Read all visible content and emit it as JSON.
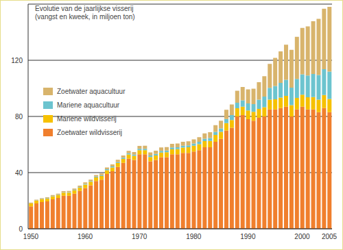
{
  "chart_data": {
    "type": "bar",
    "title": "Evolutie van de jaarlijkse visserij (vangst en kweek, in miljoen ton)",
    "stacked": true,
    "grid": true,
    "legend": "left",
    "categories": [
      "1950",
      null,
      null,
      null,
      null,
      null,
      null,
      null,
      null,
      null,
      "1960",
      null,
      null,
      null,
      null,
      null,
      null,
      null,
      null,
      null,
      "1970",
      null,
      null,
      null,
      null,
      null,
      null,
      null,
      null,
      null,
      "1980",
      null,
      null,
      null,
      null,
      null,
      null,
      null,
      null,
      null,
      "1990",
      null,
      null,
      null,
      null,
      null,
      null,
      null,
      null,
      null,
      "2000",
      null,
      null,
      null,
      null,
      "2005"
    ],
    "ylim": [
      0,
      160
    ],
    "yticks": [
      0,
      40,
      80,
      120
    ],
    "series": [
      {
        "name": "Zoetwater aquacultuur",
        "color": "#d8b46c",
        "values": [
          0.5,
          0.5,
          0.6,
          0.6,
          0.7,
          0.7,
          0.8,
          0.8,
          0.9,
          0.9,
          1,
          1,
          1.1,
          1.2,
          1.3,
          1.4,
          1.5,
          1.6,
          1.7,
          1.8,
          2,
          2.1,
          2.2,
          2.3,
          2.4,
          2.5,
          2.6,
          2.7,
          2.8,
          2.9,
          3,
          3.3,
          3.7,
          4.2,
          4.8,
          5.5,
          6.5,
          7.5,
          8.5,
          9.5,
          10,
          11,
          12.5,
          14.5,
          17,
          20,
          22.5,
          25,
          27,
          30,
          33,
          35,
          37.5,
          40,
          43,
          46
        ]
      },
      {
        "name": "Mariene aquacultuur",
        "color": "#6cc4cf",
        "values": [
          0.2,
          0.2,
          0.2,
          0.3,
          0.3,
          0.3,
          0.3,
          0.4,
          0.4,
          0.4,
          0.5,
          0.5,
          0.6,
          0.6,
          0.7,
          0.7,
          0.8,
          0.8,
          0.9,
          0.9,
          1,
          1,
          1.1,
          1.1,
          1.2,
          1.2,
          1.3,
          1.3,
          1.4,
          1.4,
          1.5,
          1.6,
          1.8,
          2,
          2.2,
          2.5,
          3,
          3.5,
          4,
          4.5,
          5,
          5.5,
          6.5,
          7.5,
          8.5,
          9.5,
          10.5,
          11.5,
          12.5,
          13.5,
          14.5,
          15.5,
          16.5,
          17.5,
          18.5,
          19.5
        ]
      },
      {
        "name": "Mariene wildvisserij",
        "color": "#f6c100",
        "values": [
          2,
          2,
          2,
          2,
          2,
          2,
          2.2,
          2.2,
          2.3,
          2.4,
          2.5,
          2.5,
          2.6,
          2.6,
          2.7,
          2.7,
          2.8,
          2.8,
          2.9,
          2.9,
          3,
          3,
          3.1,
          3.2,
          3.3,
          3.5,
          3.6,
          3.7,
          3.8,
          4,
          4.2,
          4.3,
          4.4,
          4.6,
          4.8,
          5,
          5.2,
          5.5,
          5.8,
          6,
          6.3,
          6.3,
          6.4,
          6.6,
          6.9,
          7.2,
          7.4,
          7.6,
          8,
          8.2,
          8.5,
          8.7,
          8.8,
          9,
          9.2,
          9.5
        ]
      },
      {
        "name": "Zoetwater wildvisserij",
        "color": "#f07f2d",
        "values": [
          16,
          18,
          19,
          19.5,
          21,
          22,
          23.5,
          23.5,
          25,
          27,
          29,
          31,
          34,
          35,
          39,
          41,
          44,
          47,
          50,
          49,
          53,
          53,
          48,
          49,
          51,
          51,
          53,
          53,
          54,
          54,
          55,
          56,
          58,
          58,
          62,
          64,
          70,
          72,
          80,
          81,
          78,
          77,
          79,
          80,
          85,
          85,
          86,
          87,
          80,
          85,
          87,
          85,
          85,
          83,
          86,
          83
        ]
      }
    ]
  }
}
